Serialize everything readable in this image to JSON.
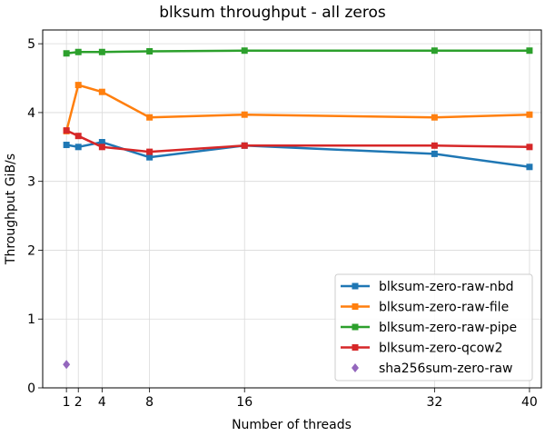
{
  "chart_data": {
    "type": "line",
    "title": "blksum throughput - all zeros",
    "xlabel": "Number of threads",
    "ylabel": "Throughput GiB/s",
    "xlim": [
      -1.0,
      41.0
    ],
    "ylim": [
      0,
      5.2
    ],
    "xticks": [
      1,
      2,
      4,
      8,
      16,
      32,
      40
    ],
    "yticks": [
      0,
      1,
      2,
      3,
      4,
      5
    ],
    "grid": true,
    "legend_position": "lower-right",
    "series": [
      {
        "name": "blksum-zero-raw-nbd",
        "color": "#1f77b4",
        "marker": "square",
        "line": true,
        "x": [
          1,
          2,
          4,
          8,
          16,
          32,
          40
        ],
        "y": [
          3.53,
          3.5,
          3.57,
          3.35,
          3.52,
          3.4,
          3.21
        ]
      },
      {
        "name": "blksum-zero-raw-file",
        "color": "#ff7f0e",
        "marker": "square",
        "line": true,
        "x": [
          1,
          2,
          4,
          8,
          16,
          32,
          40
        ],
        "y": [
          3.73,
          4.4,
          4.3,
          3.93,
          3.97,
          3.93,
          3.97
        ]
      },
      {
        "name": "blksum-zero-raw-pipe",
        "color": "#2ca02c",
        "marker": "square",
        "line": true,
        "x": [
          1,
          2,
          4,
          8,
          16,
          32,
          40
        ],
        "y": [
          4.86,
          4.88,
          4.88,
          4.89,
          4.9,
          4.9,
          4.9
        ]
      },
      {
        "name": "blksum-zero-qcow2",
        "color": "#d62728",
        "marker": "square",
        "line": true,
        "x": [
          1,
          2,
          4,
          8,
          16,
          32,
          40
        ],
        "y": [
          3.74,
          3.66,
          3.5,
          3.43,
          3.52,
          3.52,
          3.5
        ]
      },
      {
        "name": "sha256sum-zero-raw",
        "color": "#9467bd",
        "marker": "diamond",
        "line": false,
        "x": [
          1
        ],
        "y": [
          0.34
        ]
      }
    ]
  }
}
